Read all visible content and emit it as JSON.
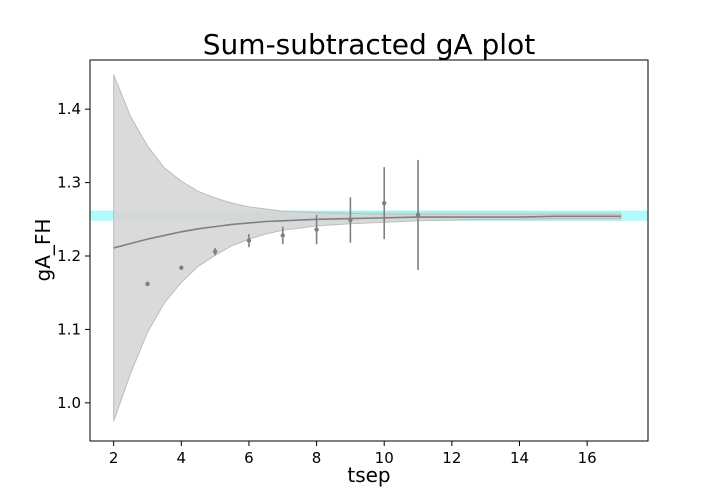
{
  "chart_data": {
    "type": "scatter",
    "title": "Sum-subtracted gA plot",
    "xlabel": "tsep",
    "ylabel": "gA_FH",
    "xlim": [
      1.3,
      17.8
    ],
    "ylim": [
      0.948,
      1.467
    ],
    "xticks": [
      2,
      4,
      6,
      8,
      10,
      12,
      14,
      16
    ],
    "yticks": [
      1.0,
      1.1,
      1.2,
      1.3,
      1.4
    ],
    "ytick_labels": [
      "1.0",
      "1.1",
      "1.2",
      "1.3",
      "1.4"
    ],
    "grid": false,
    "legend": "none",
    "points": [
      {
        "x": 3,
        "y": 1.162,
        "err": 0.003
      },
      {
        "x": 4,
        "y": 1.184,
        "err": 0.003
      },
      {
        "x": 5,
        "y": 1.206,
        "err": 0.005
      },
      {
        "x": 6,
        "y": 1.221,
        "err": 0.009
      },
      {
        "x": 7,
        "y": 1.228,
        "err": 0.012
      },
      {
        "x": 8,
        "y": 1.236,
        "err": 0.02
      },
      {
        "x": 9,
        "y": 1.249,
        "err": 0.031
      },
      {
        "x": 10,
        "y": 1.272,
        "err": 0.049
      },
      {
        "x": 11,
        "y": 1.256,
        "err": 0.075
      }
    ],
    "fit_curve": {
      "x": [
        2,
        2.5,
        3,
        3.5,
        4,
        4.5,
        5,
        5.5,
        6,
        6.5,
        7,
        7.5,
        8,
        9,
        10,
        11,
        12,
        13,
        14,
        15,
        16,
        17
      ],
      "y": [
        1.211,
        1.217,
        1.223,
        1.228,
        1.233,
        1.237,
        1.24,
        1.243,
        1.245,
        1.247,
        1.248,
        1.249,
        1.25,
        1.251,
        1.252,
        1.253,
        1.253,
        1.253,
        1.253,
        1.254,
        1.254,
        1.254
      ],
      "upper": [
        1.447,
        1.39,
        1.35,
        1.32,
        1.302,
        1.288,
        1.279,
        1.272,
        1.267,
        1.264,
        1.261,
        1.26,
        1.259,
        1.258,
        1.257,
        1.257,
        1.257,
        1.257,
        1.257,
        1.257,
        1.257,
        1.257
      ],
      "lower": [
        0.975,
        1.04,
        1.096,
        1.136,
        1.164,
        1.186,
        1.201,
        1.214,
        1.223,
        1.23,
        1.235,
        1.238,
        1.241,
        1.244,
        1.246,
        1.248,
        1.249,
        1.25,
        1.25,
        1.251,
        1.251,
        1.251
      ]
    },
    "reference_band": {
      "x_start": 1.3,
      "x_end": 17.8,
      "y_low": 1.248,
      "y_high": 1.262
    },
    "reference_inner": {
      "x_start": 2,
      "x_end": 17,
      "y_low": 1.248,
      "y_high": 1.261
    },
    "colors": {
      "points": "#808080",
      "fit_line": "#808080",
      "fit_band": "#d6d6d6",
      "fit_band_edge": "#bdbdbd",
      "reference_band": "#b3fbfb",
      "reference_inner": "#a8e4e4"
    }
  }
}
